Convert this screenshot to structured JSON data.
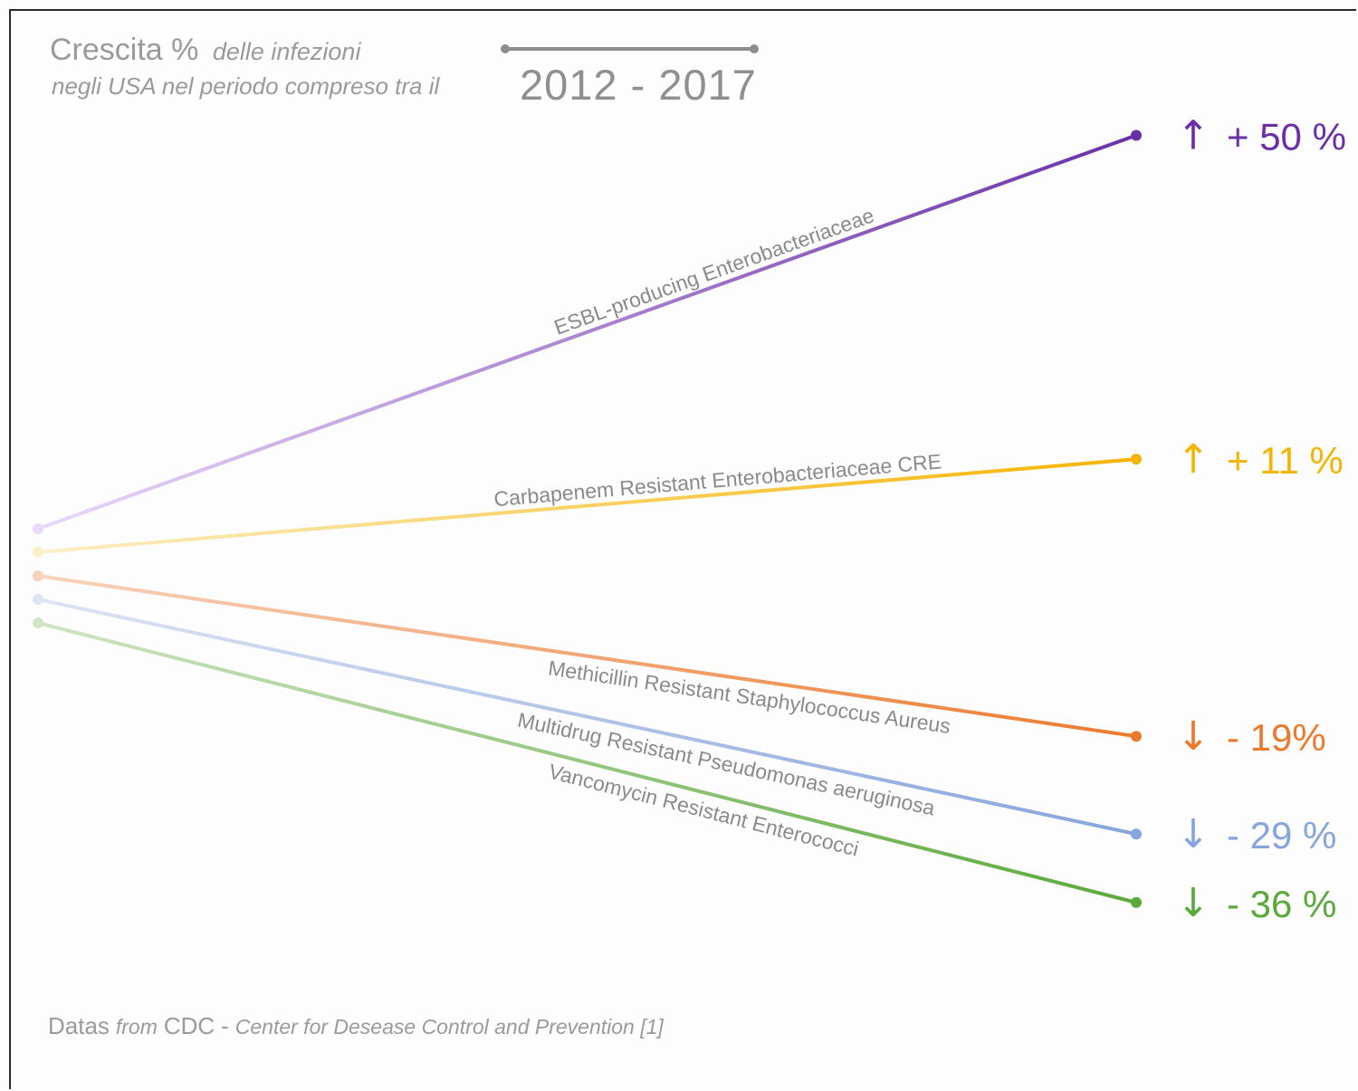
{
  "header": {
    "title_main": "Crescita %",
    "title_sub": "delle infezioni",
    "title_line2": "negli USA nel periodo compreso tra il",
    "period": "2012 - 2017"
  },
  "footer": {
    "label": "Datas",
    "from": "from",
    "source": "CDC",
    "sep": "-",
    "source_full": "Center for Desease Control and Prevention [1]"
  },
  "chart_data": {
    "type": "line",
    "title": "Crescita % delle infezioni negli USA nel periodo compreso tra il 2012 - 2017",
    "x": [
      "2012",
      "2017"
    ],
    "series": [
      {
        "name": "ESBL-producing Enterobacteriaceae",
        "change_pct": 50,
        "label": "+ 50 %",
        "direction": "up",
        "color": "#6a2fa8",
        "color_light": "#ead9fb"
      },
      {
        "name": "Carbapenem Resistant Enterobacteriaceae CRE",
        "change_pct": 11,
        "label": "+ 11 %",
        "direction": "up",
        "color": "#f5b400",
        "color_light": "#fbefc6"
      },
      {
        "name": "Methicillin Resistant Staphylococcus Aureus",
        "change_pct": -19,
        "label": "- 19%",
        "direction": "down",
        "color": "#ec7a2e",
        "color_light": "#f8d2bb"
      },
      {
        "name": "Multidrug Resistant Pseudomonas aeruginosa",
        "change_pct": -29,
        "label": "- 29 %",
        "direction": "down",
        "color": "#86a4dd",
        "color_light": "#dde4f3"
      },
      {
        "name": "Vancomycin Resistant Enterococci",
        "change_pct": -36,
        "label": "- 36 %",
        "direction": "down",
        "color": "#5aa93a",
        "color_light": "#cfe5c3"
      }
    ],
    "arrows": {
      "up": "↑",
      "down": "↓"
    }
  }
}
